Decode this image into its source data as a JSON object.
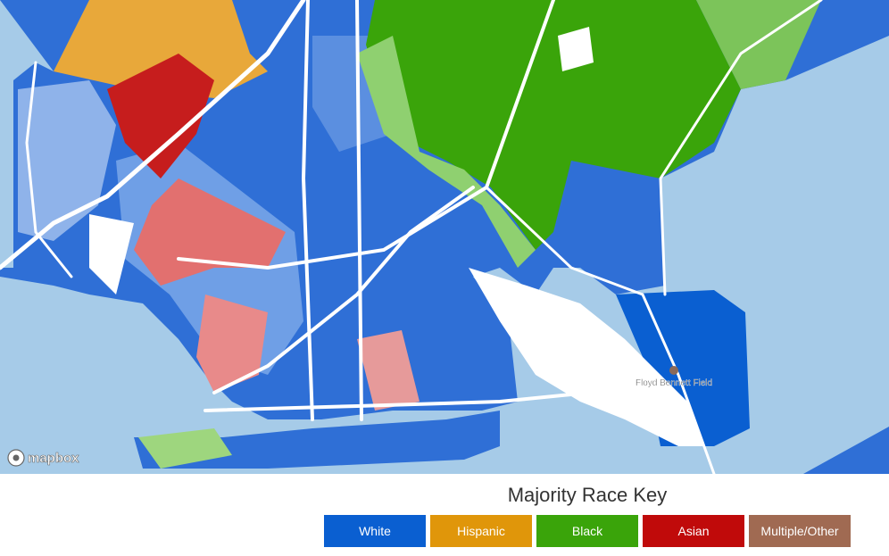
{
  "map": {
    "place_label": "Floyd Bennett Field",
    "attribution": "mapbox"
  },
  "legend": {
    "title": "Majority Race Key",
    "items": [
      {
        "label": "White",
        "color": "#0a5fd1"
      },
      {
        "label": "Hispanic",
        "color": "#e0960a"
      },
      {
        "label": "Black",
        "color": "#3aa40a"
      },
      {
        "label": "Asian",
        "color": "#c00a0a"
      },
      {
        "label": "Multiple/Other",
        "color": "#a06a52"
      }
    ]
  }
}
